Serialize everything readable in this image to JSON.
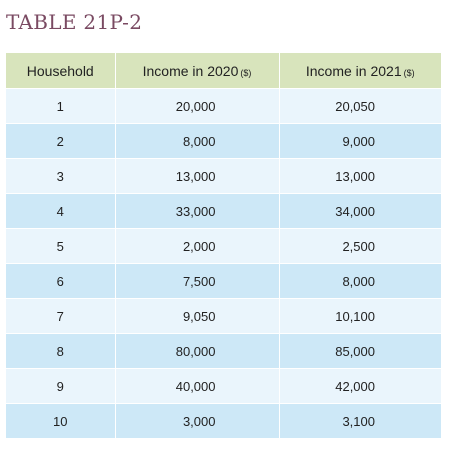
{
  "title": "TABLE 21P-2",
  "table": {
    "headers": {
      "household": "Household",
      "income_2020": "Income in 2020",
      "income_2020_unit": "($)",
      "income_2021": "Income in 2021",
      "income_2021_unit": "($)"
    },
    "rows": [
      {
        "household": "1",
        "income_2020": "20,000",
        "income_2021": "20,050"
      },
      {
        "household": "2",
        "income_2020": "8,000",
        "income_2021": "9,000"
      },
      {
        "household": "3",
        "income_2020": "13,000",
        "income_2021": "13,000"
      },
      {
        "household": "4",
        "income_2020": "33,000",
        "income_2021": "34,000"
      },
      {
        "household": "5",
        "income_2020": "2,000",
        "income_2021": "2,500"
      },
      {
        "household": "6",
        "income_2020": "7,500",
        "income_2021": "8,000"
      },
      {
        "household": "7",
        "income_2020": "9,050",
        "income_2021": "10,100"
      },
      {
        "household": "8",
        "income_2020": "80,000",
        "income_2021": "85,000"
      },
      {
        "household": "9",
        "income_2020": "40,000",
        "income_2021": "42,000"
      },
      {
        "household": "10",
        "income_2020": "3,000",
        "income_2021": "3,100"
      }
    ]
  },
  "colors": {
    "title": "#7a4a62",
    "header_bg": "#d8e4bc",
    "row_light": "#eaf5fc",
    "row_dark": "#cde8f7"
  }
}
